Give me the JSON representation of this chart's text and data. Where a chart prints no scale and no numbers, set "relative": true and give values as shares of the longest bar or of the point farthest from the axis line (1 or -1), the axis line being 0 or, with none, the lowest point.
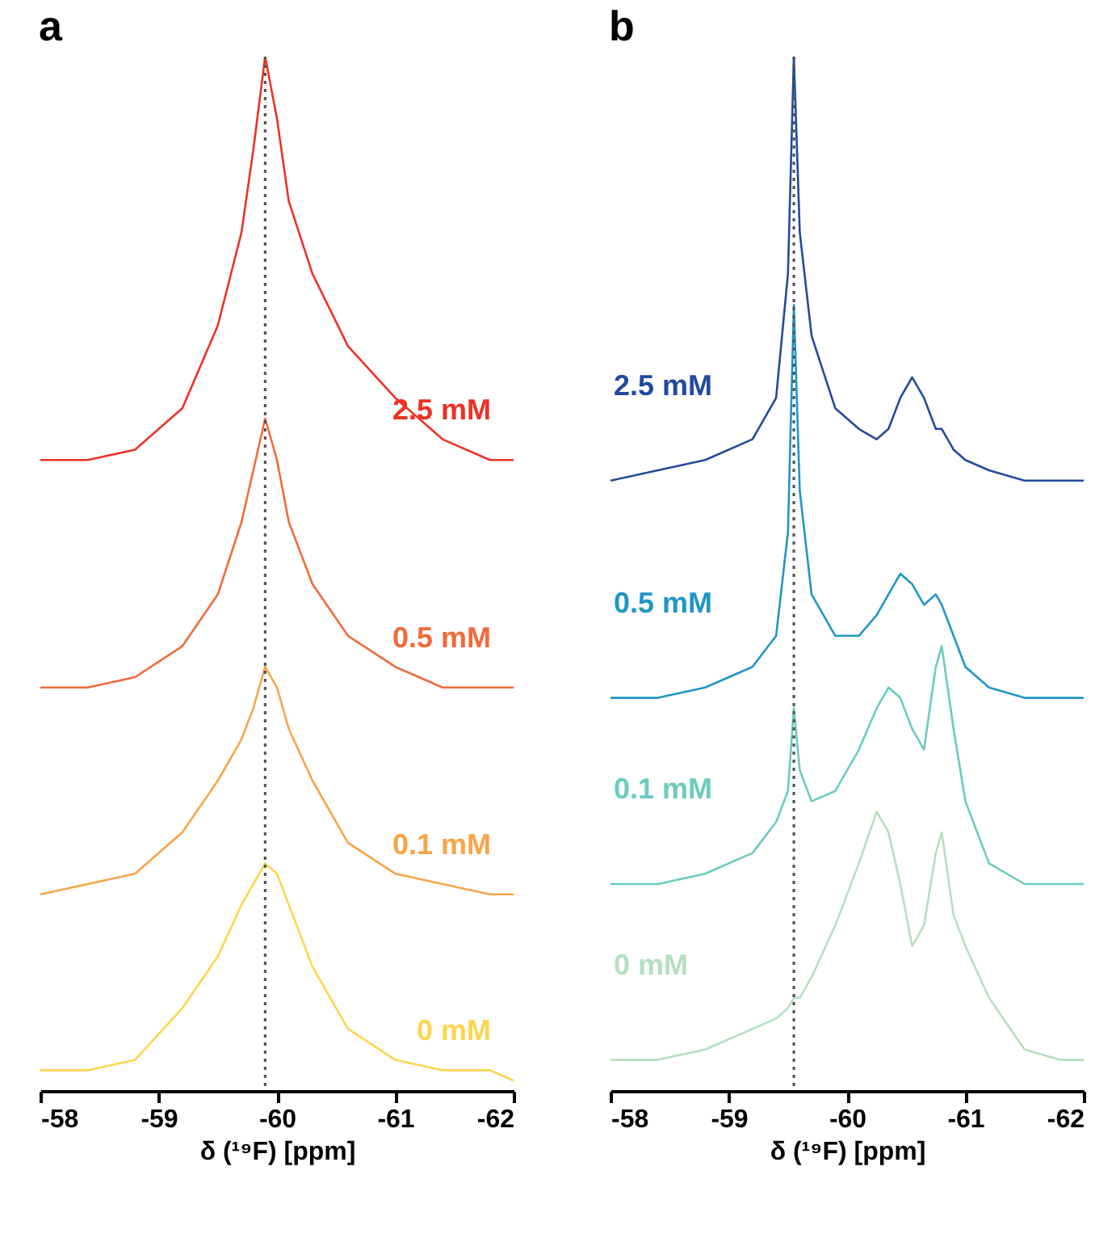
{
  "chart_data": [
    {
      "type": "line",
      "title": "a",
      "xlabel": "δ (¹⁹F) [ppm]",
      "relative": true,
      "xlim": [
        -58,
        -62
      ],
      "xticks": [
        -58,
        -59,
        -60,
        -61,
        -62
      ],
      "line_style": "solid",
      "x": [
        -58,
        -58.4,
        -58.8,
        -59.2,
        -59.5,
        -59.7,
        -59.8,
        -59.9,
        -60.0,
        -60.1,
        -60.3,
        -60.6,
        -61.0,
        -61.4,
        -61.8,
        -62
      ],
      "series": [
        {
          "name": "2.5 mM",
          "color": "#ee3124",
          "values": [
            0.61,
            0.61,
            0.62,
            0.66,
            0.74,
            0.83,
            0.91,
            1.0,
            0.94,
            0.86,
            0.79,
            0.72,
            0.67,
            0.63,
            0.61,
            0.61
          ]
        },
        {
          "name": "0.5 mM",
          "color": "#f26a3a",
          "values": [
            0.39,
            0.39,
            0.4,
            0.43,
            0.48,
            0.55,
            0.6,
            0.65,
            0.61,
            0.55,
            0.49,
            0.44,
            0.41,
            0.39,
            0.39,
            0.39
          ]
        },
        {
          "name": "0.1 mM",
          "color": "#f7a448",
          "values": [
            0.19,
            0.2,
            0.21,
            0.25,
            0.3,
            0.34,
            0.37,
            0.41,
            0.39,
            0.35,
            0.3,
            0.24,
            0.21,
            0.2,
            0.19,
            0.19
          ]
        },
        {
          "name": "0 mM",
          "color": "#fdd54f",
          "values": [
            0.02,
            0.02,
            0.03,
            0.08,
            0.13,
            0.18,
            0.2,
            0.22,
            0.21,
            0.18,
            0.12,
            0.06,
            0.03,
            0.02,
            0.02,
            0.01
          ]
        }
      ],
      "ref_lines": [
        {
          "axis": "x",
          "value": -59.9,
          "line_style": "dotted",
          "color": "#555555"
        }
      ]
    },
    {
      "type": "line",
      "title": "b",
      "xlabel": "δ (¹⁹F) [ppm]",
      "relative": true,
      "xlim": [
        -58,
        -62
      ],
      "xticks": [
        -58,
        -59,
        -60,
        -61,
        -62
      ],
      "line_style": "solid",
      "x": [
        -58,
        -58.4,
        -58.8,
        -59.2,
        -59.4,
        -59.5,
        -59.55,
        -59.6,
        -59.7,
        -59.9,
        -60.1,
        -60.25,
        -60.35,
        -60.45,
        -60.55,
        -60.65,
        -60.75,
        -60.8,
        -60.9,
        -61.0,
        -61.2,
        -61.5,
        -61.8,
        -62
      ],
      "series": [
        {
          "name": "2.5 mM",
          "color": "#234a9c",
          "values": [
            0.59,
            0.6,
            0.61,
            0.63,
            0.67,
            0.79,
            1.0,
            0.83,
            0.73,
            0.66,
            0.64,
            0.63,
            0.64,
            0.67,
            0.69,
            0.67,
            0.64,
            0.64,
            0.62,
            0.61,
            0.6,
            0.59,
            0.59,
            0.59
          ]
        },
        {
          "name": "0.5 mM",
          "color": "#2196c4",
          "values": [
            0.38,
            0.38,
            0.39,
            0.41,
            0.44,
            0.54,
            0.76,
            0.58,
            0.48,
            0.44,
            0.44,
            0.46,
            0.48,
            0.5,
            0.49,
            0.47,
            0.48,
            0.47,
            0.44,
            0.41,
            0.39,
            0.38,
            0.38,
            0.38
          ]
        },
        {
          "name": "0.1 mM",
          "color": "#6ccbbf",
          "values": [
            0.2,
            0.2,
            0.21,
            0.23,
            0.26,
            0.29,
            0.37,
            0.31,
            0.28,
            0.29,
            0.33,
            0.37,
            0.39,
            0.38,
            0.35,
            0.33,
            0.41,
            0.43,
            0.35,
            0.28,
            0.22,
            0.2,
            0.2,
            0.2
          ]
        },
        {
          "name": "0 mM",
          "color": "#b5dfc0",
          "values": [
            0.03,
            0.03,
            0.04,
            0.06,
            0.07,
            0.08,
            0.09,
            0.09,
            0.11,
            0.16,
            0.22,
            0.27,
            0.25,
            0.2,
            0.14,
            0.16,
            0.23,
            0.25,
            0.17,
            0.14,
            0.09,
            0.04,
            0.03,
            0.03
          ]
        }
      ],
      "ref_lines": [
        {
          "axis": "x",
          "value": -59.55,
          "line_style": "dotted",
          "color": "#555555"
        }
      ]
    }
  ]
}
